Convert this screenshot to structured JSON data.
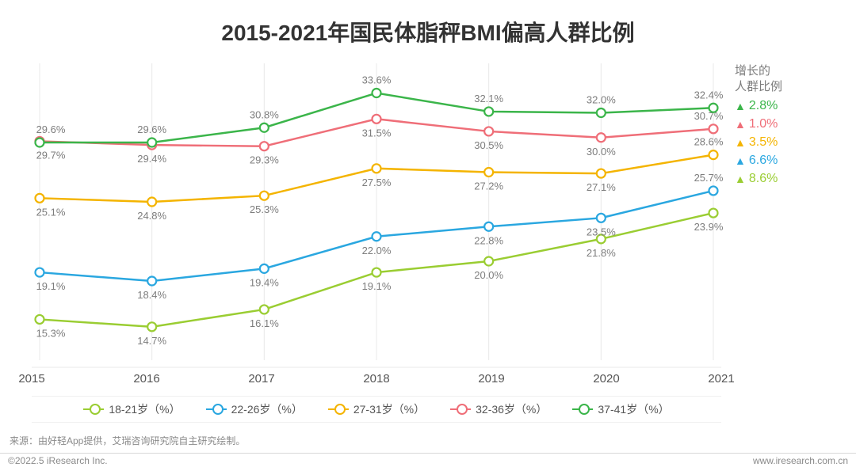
{
  "title": "2015-2021年国民体脂秤BMI偏高人群比例",
  "title_fontsize": 28,
  "title_color": "#333333",
  "background_color": "#ffffff",
  "chart": {
    "type": "line",
    "categories": [
      "2015",
      "2016",
      "2017",
      "2018",
      "2019",
      "2020",
      "2021"
    ],
    "y_min": 12,
    "y_max": 36,
    "axis_label_fontsize": 15,
    "axis_label_color": "#555555",
    "grid_color": "#e8e8e8",
    "point_label_fontsize": 13,
    "point_label_color": "#7d7d7d",
    "line_width": 2.5,
    "marker_radius": 5.5,
    "marker_fill": "#ffffff",
    "series": [
      {
        "key": "s1",
        "name": "18-21岁（%）",
        "color": "#9acd32",
        "values": [
          15.3,
          14.7,
          16.1,
          19.1,
          20.0,
          21.8,
          23.9
        ],
        "label_pos": [
          "below",
          "below",
          "below",
          "below",
          "below",
          "below",
          "below"
        ]
      },
      {
        "key": "s2",
        "name": "22-26岁（%）",
        "color": "#2aa7e0",
        "values": [
          19.1,
          18.4,
          19.4,
          22.0,
          22.8,
          23.5,
          25.7
        ],
        "label_pos": [
          "below",
          "below",
          "below",
          "below",
          "below",
          "below",
          "above"
        ]
      },
      {
        "key": "s3",
        "name": "27-31岁（%）",
        "color": "#f4b400",
        "values": [
          25.1,
          24.8,
          25.3,
          27.5,
          27.2,
          27.1,
          28.6
        ],
        "label_pos": [
          "below",
          "below",
          "below",
          "below",
          "below",
          "below",
          "above"
        ]
      },
      {
        "key": "s4",
        "name": "32-36岁（%）",
        "color": "#ef6e78",
        "values": [
          29.7,
          29.4,
          29.3,
          31.5,
          30.5,
          30.0,
          30.7
        ],
        "label_pos": [
          "below",
          "below",
          "below",
          "below",
          "below",
          "below",
          "above"
        ]
      },
      {
        "key": "s5",
        "name": "37-41岁（%）",
        "color": "#3bb54a",
        "values": [
          29.6,
          29.6,
          30.8,
          33.6,
          32.1,
          32.0,
          32.4
        ],
        "label_pos": [
          "above",
          "above",
          "above",
          "above",
          "above",
          "above",
          "above"
        ]
      }
    ]
  },
  "legend_fontsize": 14,
  "growth": {
    "title_line1": "增长的",
    "title_line2": "人群比例",
    "title_color": "#7d7d7d",
    "title_fontsize": 15,
    "value_fontsize": 16,
    "rows": [
      {
        "color": "#3bb54a",
        "value": "2.8%"
      },
      {
        "color": "#ef6e78",
        "value": "1.0%"
      },
      {
        "color": "#f4b400",
        "value": "3.5%"
      },
      {
        "color": "#2aa7e0",
        "value": "6.6%"
      },
      {
        "color": "#9acd32",
        "value": "8.6%"
      }
    ]
  },
  "source_text": "来源：由好轻App提供，艾瑞咨询研究院自主研究绘制。",
  "source_fontsize": 12,
  "footer_left": "©2022.5 iResearch Inc.",
  "footer_right": "www.iresearch.com.cn",
  "footer_fontsize": 12
}
